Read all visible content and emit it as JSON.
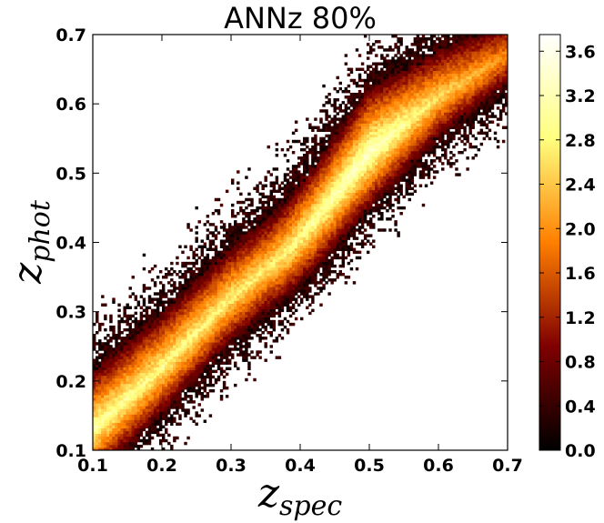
{
  "chart_data": {
    "type": "heatmap",
    "title": "ANNz 80%",
    "xlabel_main": "z",
    "xlabel_sub": "spec",
    "ylabel_main": "z",
    "ylabel_sub": "phot",
    "xlim": [
      0.1,
      0.7
    ],
    "ylim": [
      0.1,
      0.7
    ],
    "x_ticks": [
      "0.1",
      "0.2",
      "0.3",
      "0.4",
      "0.5",
      "0.6",
      "0.7"
    ],
    "y_ticks": [
      "0.1",
      "0.2",
      "0.3",
      "0.4",
      "0.5",
      "0.6",
      "0.7"
    ],
    "colorbar": {
      "colormap": "afmhot",
      "range": [
        0.0,
        3.75
      ],
      "ticks": [
        "0.0",
        "0.4",
        "0.8",
        "1.2",
        "1.6",
        "2.0",
        "2.4",
        "2.8",
        "3.2",
        "3.6"
      ]
    },
    "empty_bin_color": "#ffffff",
    "ridge": {
      "x": [
        0.1,
        0.2,
        0.3,
        0.38,
        0.42,
        0.5,
        0.6,
        0.7
      ],
      "y": [
        0.13,
        0.22,
        0.32,
        0.385,
        0.43,
        0.53,
        0.61,
        0.67
      ]
    },
    "peak_log_density": [
      {
        "x": 0.1,
        "value": 3.1
      },
      {
        "x": 0.2,
        "value": 2.9
      },
      {
        "x": 0.35,
        "value": 2.7
      },
      {
        "x": 0.5,
        "value": 3.4
      },
      {
        "x": 0.6,
        "value": 2.6
      },
      {
        "x": 0.7,
        "value": 2.0
      }
    ]
  }
}
